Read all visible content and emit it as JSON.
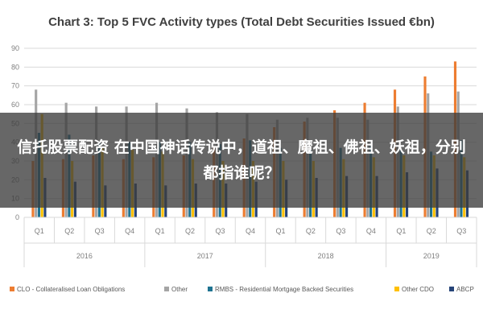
{
  "overlay": {
    "text": "信托股票配资 在中国神话传说中，道祖、魔祖、佛祖、妖祖，分别都指谁呢？"
  },
  "chart_data": {
    "type": "bar",
    "title": "Chart 3: Top 5 FVC Activity types (Total Debt Securities Issued €bn)",
    "ylim": [
      0,
      90
    ],
    "yticks": [
      0,
      10,
      20,
      30,
      40,
      50,
      60,
      70,
      80,
      90
    ],
    "grid": true,
    "legend_position": "bottom",
    "categories": [
      "Q1",
      "Q2",
      "Q3",
      "Q4",
      "Q1",
      "Q2",
      "Q3",
      "Q4",
      "Q1",
      "Q2",
      "Q3",
      "Q4",
      "Q1",
      "Q2",
      "Q3"
    ],
    "groups": [
      {
        "label": "2016",
        "count": 4
      },
      {
        "label": "2017",
        "count": 4
      },
      {
        "label": "2018",
        "count": 4
      },
      {
        "label": "2019",
        "count": 3
      }
    ],
    "series": [
      {
        "name": "CLO - Collateralised Loan Obligations",
        "color": "#ed7d31",
        "values": [
          30,
          31,
          33,
          31,
          32,
          33,
          38,
          42,
          48,
          51,
          57,
          61,
          68,
          75,
          83
        ]
      },
      {
        "name": "Other",
        "color": "#a5a5a5",
        "values": [
          68,
          61,
          59,
          59,
          61,
          58,
          56,
          55,
          52,
          53,
          53,
          52,
          59,
          66,
          67
        ]
      },
      {
        "name": "RMBS - Residential Mortgage Backed Securities",
        "color": "#1f7391",
        "values": [
          45,
          44,
          40,
          40,
          40,
          40,
          39,
          41,
          37,
          36,
          37,
          38,
          36,
          35,
          41
        ]
      },
      {
        "name": "Other CDO",
        "color": "#ffc000",
        "values": [
          55,
          30,
          37,
          36,
          35,
          31,
          30,
          30,
          30,
          30,
          31,
          32,
          33,
          33,
          32
        ]
      },
      {
        "name": "ABCP",
        "color": "#264478",
        "values": [
          21,
          19,
          17,
          18,
          17,
          18,
          18,
          19,
          20,
          21,
          22,
          22,
          24,
          26,
          25
        ]
      }
    ]
  }
}
